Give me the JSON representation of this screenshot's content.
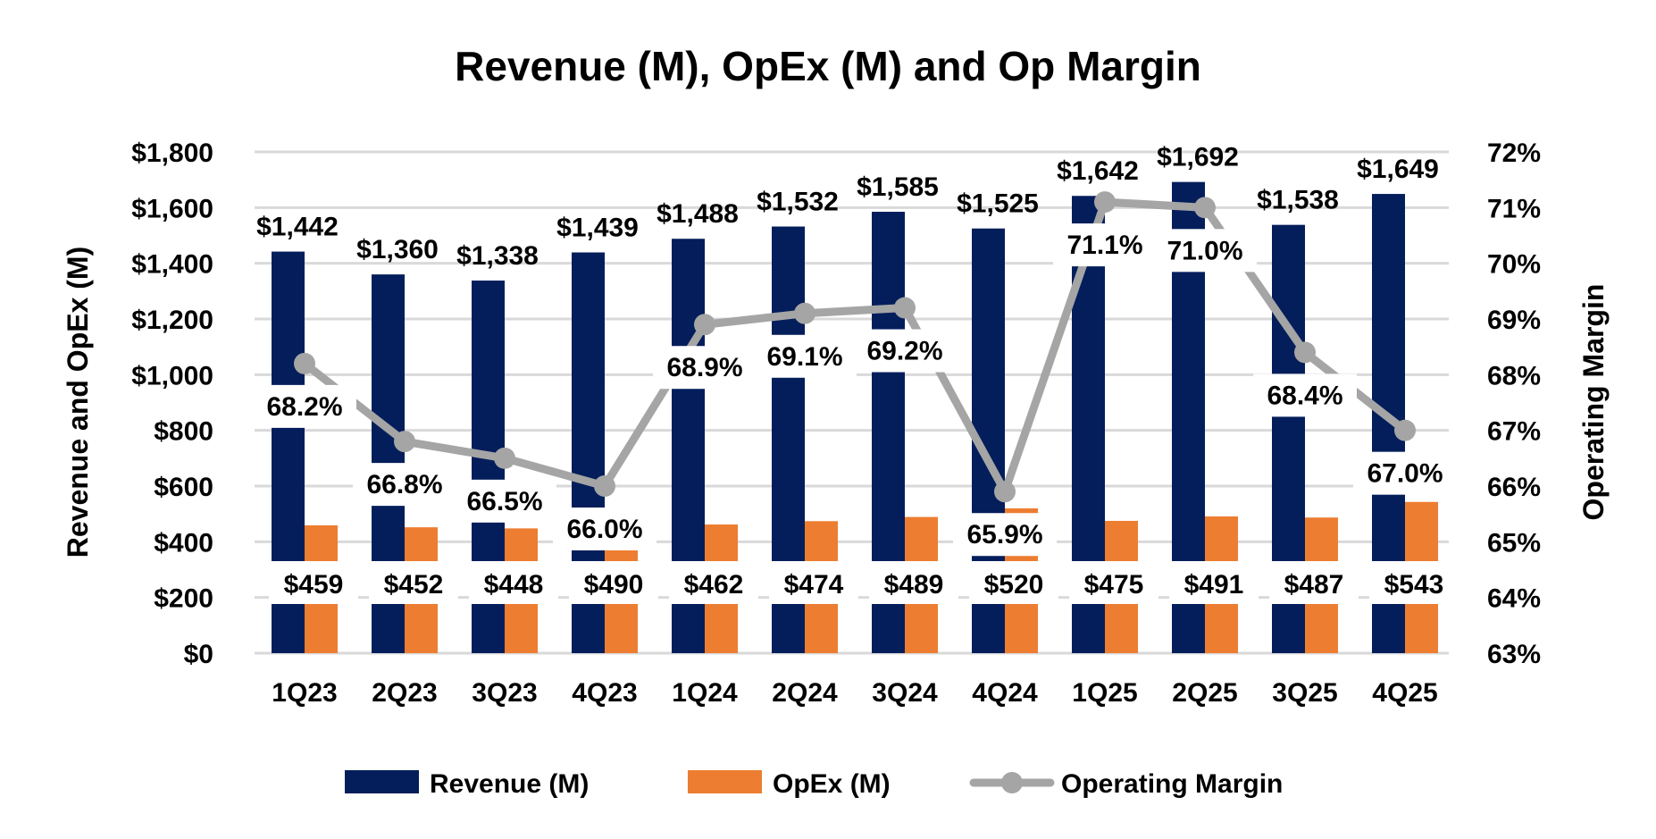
{
  "chart_data": {
    "type": "bar",
    "title": "Revenue (M), OpEx (M) and Op Margin",
    "ylabel": "Revenue and OpEx (M)",
    "y2label": "Operating Margin",
    "xlabel": "",
    "categories": [
      "1Q23",
      "2Q23",
      "3Q23",
      "4Q23",
      "1Q24",
      "2Q24",
      "3Q24",
      "4Q24",
      "1Q25",
      "2Q25",
      "3Q25",
      "4Q25"
    ],
    "ylim": [
      0,
      1800
    ],
    "y2lim": [
      63,
      72
    ],
    "yticks": [
      "$0",
      "$200",
      "$400",
      "$600",
      "$800",
      "$1,000",
      "$1,200",
      "$1,400",
      "$1,600",
      "$1,800"
    ],
    "y2ticks": [
      "63%",
      "64%",
      "65%",
      "66%",
      "67%",
      "68%",
      "69%",
      "70%",
      "71%",
      "72%"
    ],
    "grid": true,
    "legend_position": "bottom",
    "series": [
      {
        "name": "Revenue (M)",
        "type": "bar",
        "color": "#041E5B",
        "values": [
          1442,
          1360,
          1338,
          1439,
          1488,
          1532,
          1585,
          1525,
          1642,
          1692,
          1538,
          1649
        ],
        "labels": [
          "$1,442",
          "$1,360",
          "$1,338",
          "$1,439",
          "$1,488",
          "$1,532",
          "$1,585",
          "$1,525",
          "$1,642",
          "$1,692",
          "$1,538",
          "$1,649"
        ]
      },
      {
        "name": "OpEx (M)",
        "type": "bar",
        "color": "#ED7D31",
        "values": [
          459,
          452,
          448,
          490,
          462,
          474,
          489,
          520,
          475,
          491,
          487,
          543
        ],
        "labels": [
          "$459",
          "$452",
          "$448",
          "$490",
          "$462",
          "$474",
          "$489",
          "$520",
          "$475",
          "$491",
          "$487",
          "$543"
        ]
      },
      {
        "name": "Operating Margin",
        "type": "line",
        "axis": "right",
        "color": "#A5A5A5",
        "values": [
          68.2,
          66.8,
          66.5,
          66.0,
          68.9,
          69.1,
          69.2,
          65.9,
          71.1,
          71.0,
          68.4,
          67.0
        ],
        "labels": [
          "68.2%",
          "66.8%",
          "66.5%",
          "66.0%",
          "68.9%",
          "69.1%",
          "69.2%",
          "65.9%",
          "71.1%",
          "71.0%",
          "68.4%",
          "67.0%"
        ]
      }
    ]
  }
}
